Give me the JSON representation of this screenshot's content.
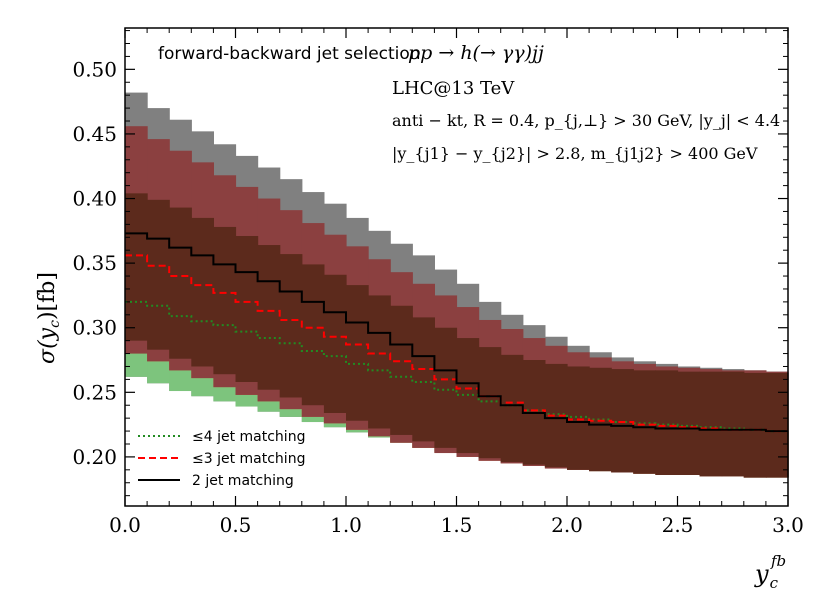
{
  "chart_data": {
    "type": "step",
    "xlabel": "y_c^{fb}",
    "xlabel_base": "y",
    "xlabel_sub": "c",
    "xlabel_sup": "fb",
    "ylabel": "σ(y_c)[fb]",
    "ylabel_parts": {
      "sigma": "σ(",
      "var": "y",
      "sub": "c",
      "close": ")",
      "unit": "[fb]"
    },
    "xlim": [
      0.0,
      3.0
    ],
    "ylim": [
      0.162,
      0.532
    ],
    "xticks": [
      0.0,
      0.5,
      1.0,
      1.5,
      2.0,
      2.5,
      3.0
    ],
    "xtick_labels": [
      "0.0",
      "0.5",
      "1.0",
      "1.5",
      "2.0",
      "2.5",
      "3.0"
    ],
    "yticks": [
      0.2,
      0.25,
      0.3,
      0.35,
      0.4,
      0.45,
      0.5
    ],
    "ytick_labels": [
      "0.20",
      "0.25",
      "0.30",
      "0.35",
      "0.40",
      "0.45",
      "0.50"
    ],
    "bin_edges": [
      0.0,
      0.1,
      0.2,
      0.3,
      0.4,
      0.5,
      0.6,
      0.7,
      0.8,
      0.9,
      1.0,
      1.1,
      1.2,
      1.3,
      1.4,
      1.5,
      1.6,
      1.7,
      1.8,
      1.9,
      2.0,
      2.1,
      2.2,
      2.3,
      2.4,
      2.5,
      2.6,
      2.7,
      2.8,
      2.9,
      3.0
    ],
    "annotations": {
      "selection": "forward-backward jet selection",
      "process": "pp → h(→ γγ)jj",
      "collider": "LHC@13 TeV",
      "cuts1": "anti − kt, R = 0.4, p_{j,⊥} > 30 GeV, |y_j| < 4.4",
      "cuts2": "|y_{j1} − y_{j2}| > 2.8, m_{j1j2} > 400 GeV"
    },
    "series": [
      {
        "name": "≤4 jet matching",
        "style": "dotted",
        "color": "#228b22",
        "band_color": "#7dc47d",
        "central": [
          0.32,
          0.317,
          0.309,
          0.305,
          0.302,
          0.297,
          0.292,
          0.288,
          0.282,
          0.278,
          0.272,
          0.267,
          0.262,
          0.258,
          0.252,
          0.248,
          0.243,
          0.24,
          0.236,
          0.233,
          0.231,
          0.229,
          0.227,
          0.226,
          0.225,
          0.224,
          0.223,
          0.222,
          0.221,
          0.22
        ],
        "band_low": [
          0.262,
          0.257,
          0.251,
          0.247,
          0.243,
          0.239,
          0.235,
          0.231,
          0.227,
          0.223,
          0.219,
          0.215,
          0.211,
          0.207,
          0.204,
          0.201,
          0.198,
          0.196,
          0.194,
          0.192,
          0.19,
          0.189,
          0.188,
          0.187,
          0.186,
          0.186,
          0.185,
          0.185,
          0.184,
          0.184
        ],
        "band_high": [
          0.482,
          0.47,
          0.461,
          0.452,
          0.442,
          0.433,
          0.424,
          0.415,
          0.405,
          0.396,
          0.385,
          0.375,
          0.365,
          0.356,
          0.345,
          0.334,
          0.32,
          0.31,
          0.302,
          0.293,
          0.286,
          0.281,
          0.277,
          0.274,
          0.272,
          0.27,
          0.269,
          0.268,
          0.267,
          0.266
        ]
      },
      {
        "name": "≤3 jet matching",
        "style": "dashed",
        "color": "#ff0000",
        "band_color": "#c8603a",
        "central": [
          0.356,
          0.348,
          0.34,
          0.333,
          0.327,
          0.32,
          0.313,
          0.306,
          0.3,
          0.293,
          0.287,
          0.28,
          0.274,
          0.268,
          0.26,
          0.253,
          0.247,
          0.242,
          0.236,
          0.232,
          0.229,
          0.228,
          0.227,
          0.225,
          0.224,
          0.223,
          0.222,
          0.221,
          0.221,
          0.22
        ],
        "band_low": [
          0.28,
          0.274,
          0.267,
          0.261,
          0.254,
          0.248,
          0.243,
          0.237,
          0.231,
          0.226,
          0.221,
          0.216,
          0.211,
          0.207,
          0.203,
          0.2,
          0.197,
          0.195,
          0.193,
          0.191,
          0.19,
          0.189,
          0.188,
          0.187,
          0.186,
          0.186,
          0.185,
          0.185,
          0.184,
          0.184
        ],
        "band_high": [
          0.456,
          0.446,
          0.437,
          0.428,
          0.418,
          0.409,
          0.4,
          0.391,
          0.381,
          0.372,
          0.363,
          0.353,
          0.343,
          0.334,
          0.325,
          0.316,
          0.306,
          0.299,
          0.292,
          0.286,
          0.281,
          0.277,
          0.274,
          0.272,
          0.27,
          0.269,
          0.268,
          0.267,
          0.267,
          0.266
        ]
      },
      {
        "name": "2 jet matching",
        "style": "solid",
        "color": "#000000",
        "band_color": "#5c2a1c",
        "central": [
          0.373,
          0.369,
          0.362,
          0.356,
          0.349,
          0.343,
          0.336,
          0.328,
          0.32,
          0.312,
          0.304,
          0.296,
          0.287,
          0.278,
          0.267,
          0.257,
          0.247,
          0.24,
          0.234,
          0.23,
          0.227,
          0.225,
          0.224,
          0.223,
          0.222,
          0.222,
          0.221,
          0.221,
          0.221,
          0.22
        ],
        "band_low": [
          0.29,
          0.283,
          0.276,
          0.27,
          0.264,
          0.258,
          0.252,
          0.246,
          0.24,
          0.234,
          0.228,
          0.222,
          0.217,
          0.212,
          0.207,
          0.203,
          0.199,
          0.196,
          0.194,
          0.192,
          0.19,
          0.189,
          0.188,
          0.187,
          0.186,
          0.186,
          0.185,
          0.185,
          0.184,
          0.184
        ],
        "band_high": [
          0.404,
          0.399,
          0.393,
          0.385,
          0.378,
          0.371,
          0.364,
          0.357,
          0.349,
          0.341,
          0.333,
          0.325,
          0.317,
          0.308,
          0.3,
          0.292,
          0.285,
          0.279,
          0.275,
          0.272,
          0.27,
          0.269,
          0.268,
          0.267,
          0.267,
          0.266,
          0.266,
          0.266,
          0.265,
          0.265
        ]
      }
    ],
    "top_band_color": "#808080",
    "top_band_high": [
      0.482,
      0.47,
      0.461,
      0.452,
      0.442,
      0.433,
      0.424,
      0.415,
      0.405,
      0.396,
      0.385,
      0.375,
      0.365,
      0.356,
      0.345,
      0.334,
      0.32,
      0.31,
      0.302,
      0.293,
      0.286,
      0.281,
      0.277,
      0.274,
      0.272,
      0.27,
      0.269,
      0.268,
      0.267,
      0.266
    ],
    "mid_band_color": "#8b4040",
    "legend_location": "bottom-left"
  }
}
